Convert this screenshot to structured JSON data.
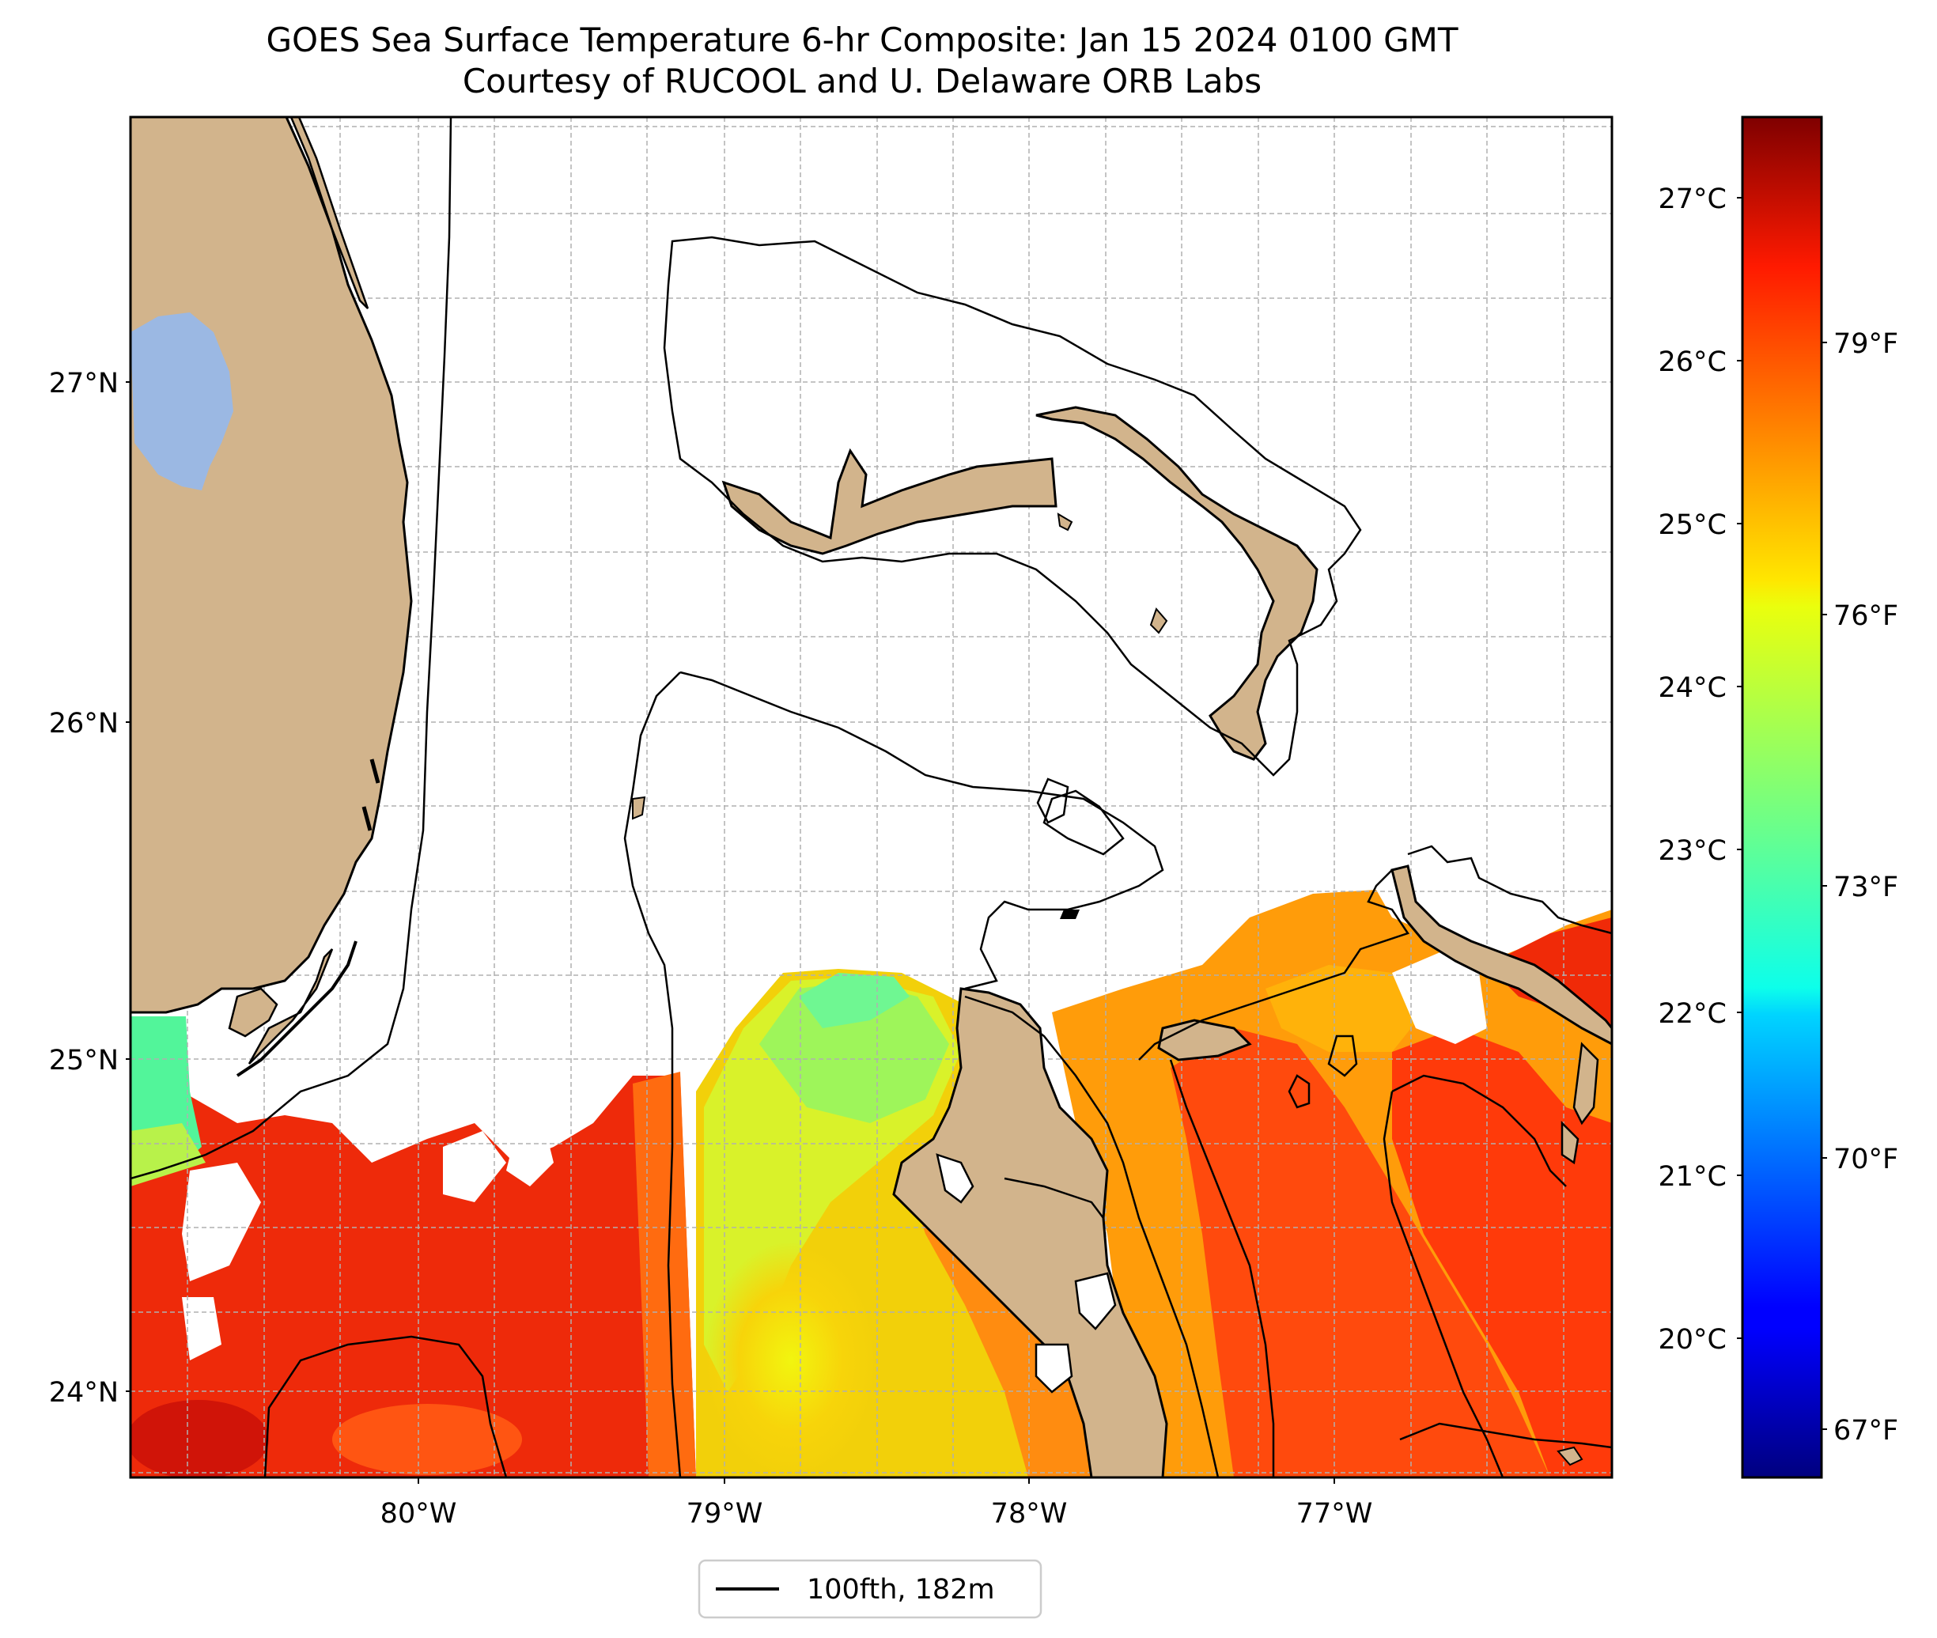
{
  "title": {
    "line1": "GOES Sea Surface Temperature 6-hr Composite: Jan 15 2024 0100 GMT",
    "line2": "Courtesy of RUCOOL and U. Delaware ORB Labs"
  },
  "map": {
    "lat_labels": [
      {
        "value": 27,
        "text": "27°N"
      },
      {
        "value": 26,
        "text": "26°N"
      },
      {
        "value": 25,
        "text": "25°N"
      },
      {
        "value": 24,
        "text": "24°N"
      }
    ],
    "lon_labels": [
      {
        "value": -80,
        "text": "80°W"
      },
      {
        "value": -79,
        "text": "79°W"
      },
      {
        "value": -78,
        "text": "78°W"
      },
      {
        "value": -77,
        "text": "77°W"
      }
    ],
    "lat_range": [
      23.75,
      27.78
    ],
    "lon_range": [
      -80.95,
      -76.1
    ],
    "gridlines": "dashed",
    "colors": {
      "land": "#d2b48c",
      "lake": "#9bb8e3",
      "contour": "#000000"
    }
  },
  "colorbar": {
    "colormap": "jet",
    "c_range": [
      19.3,
      27.5
    ],
    "celsius_labels": [
      {
        "value": 27,
        "text": "27°C"
      },
      {
        "value": 26,
        "text": "26°C"
      },
      {
        "value": 25,
        "text": "25°C"
      },
      {
        "value": 24,
        "text": "24°C"
      },
      {
        "value": 23,
        "text": "23°C"
      },
      {
        "value": 22,
        "text": "22°C"
      },
      {
        "value": 21,
        "text": "21°C"
      },
      {
        "value": 20,
        "text": "20°C"
      }
    ],
    "fahrenheit_labels": [
      {
        "value": 79,
        "text": "79°F"
      },
      {
        "value": 76,
        "text": "76°F"
      },
      {
        "value": 73,
        "text": "73°F"
      },
      {
        "value": 70,
        "text": "70°F"
      },
      {
        "value": 67,
        "text": "67°F"
      }
    ]
  },
  "legend": {
    "label": "100fth, 182m"
  }
}
